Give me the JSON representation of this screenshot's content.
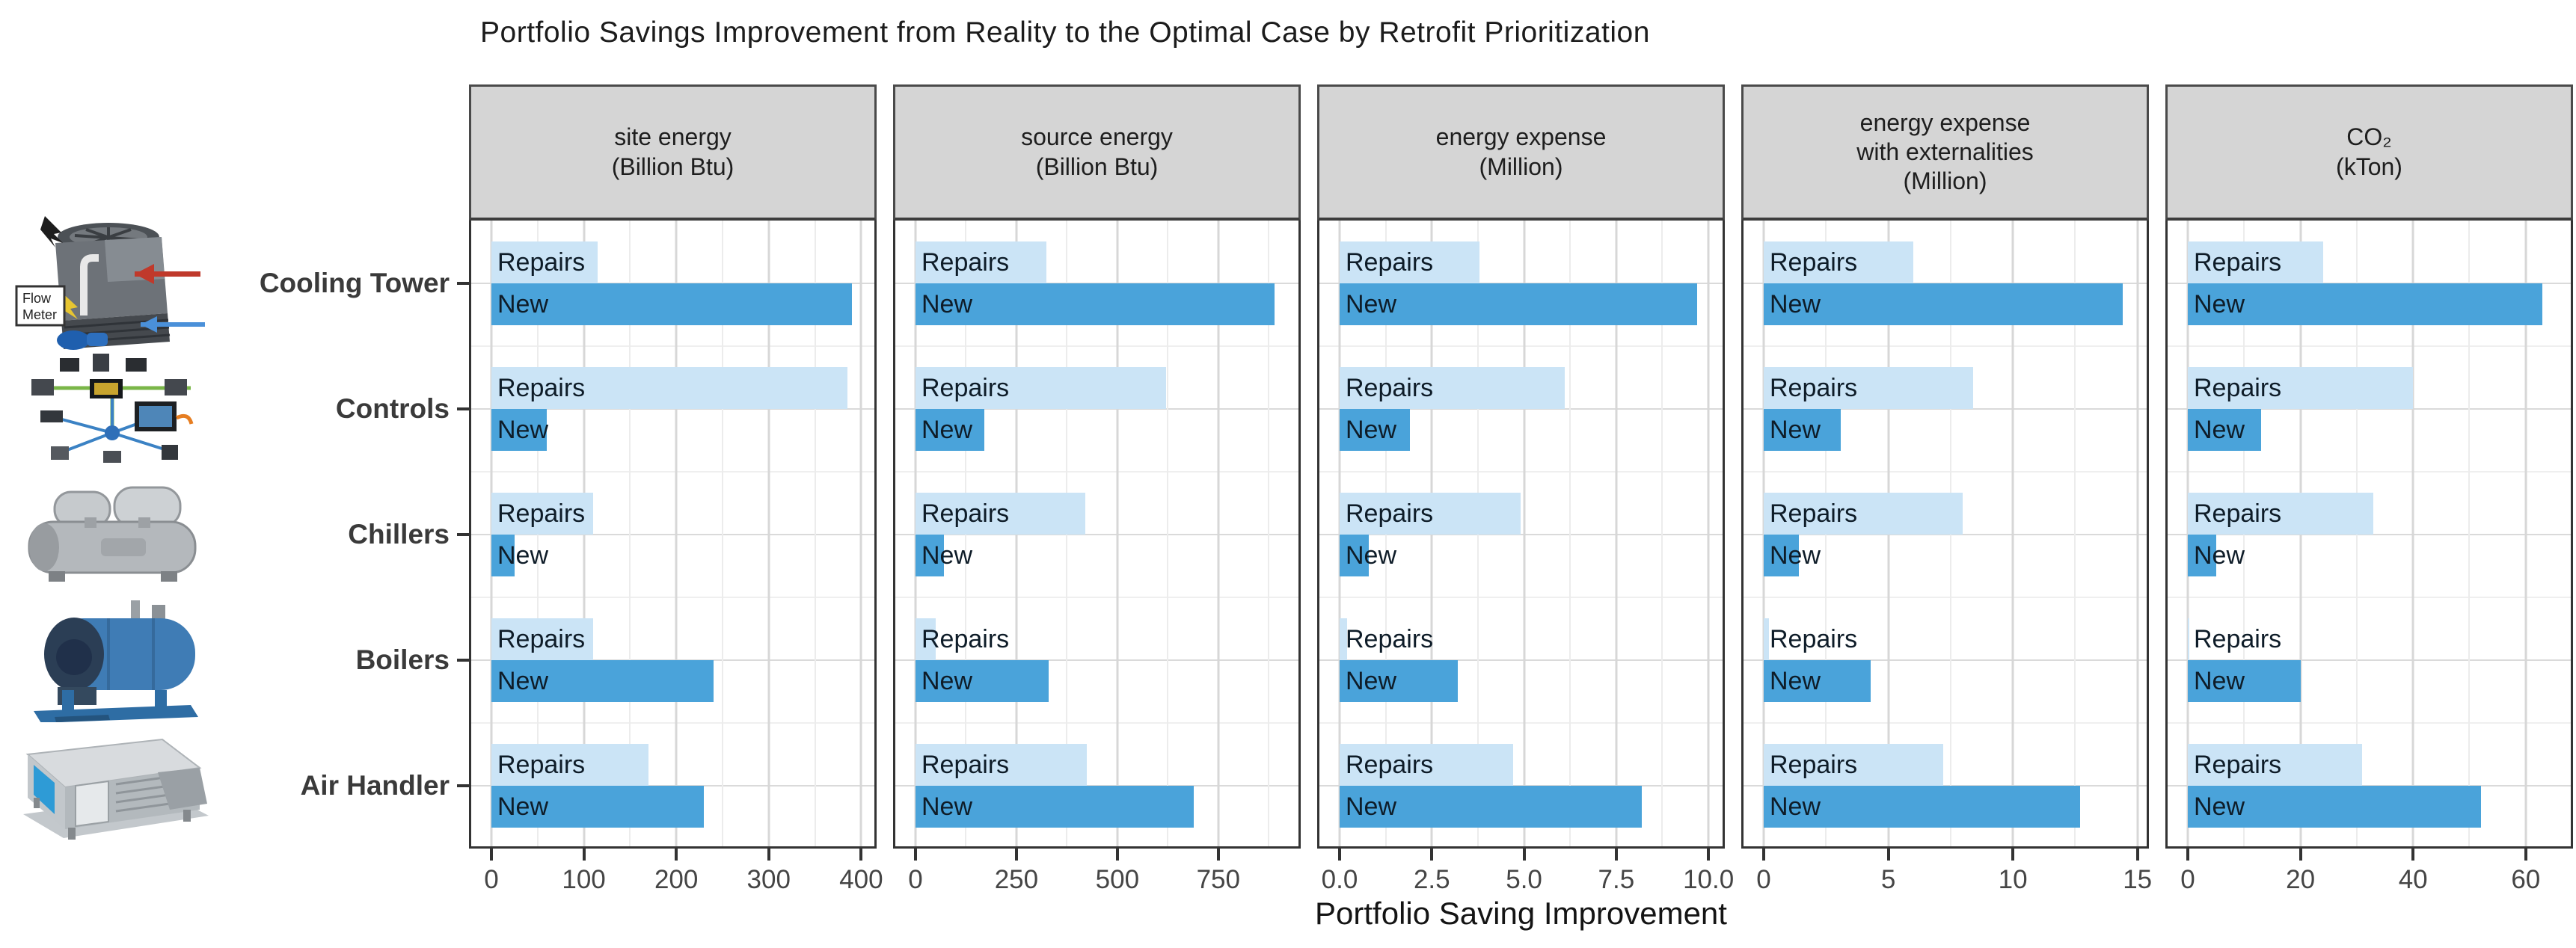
{
  "title": "Portfolio Savings Improvement from Reality to the Optimal Case by Retrofit Prioritization",
  "x_axis_title": "Portfolio Saving Improvement",
  "series_labels": [
    "Repairs",
    "New"
  ],
  "categories": [
    "Cooling Tower",
    "Controls",
    "Chillers",
    "Boilers",
    "Air Handler"
  ],
  "colors": {
    "repairs_bar": "#cbe4f6",
    "new_bar": "#4aa3da",
    "strip_bg": "#d5d5d5",
    "panel_border": "#333333",
    "bar_label_text": "#0e1c28",
    "boiler_blue": "#3f7cb5",
    "control_line_green": "#7ab648",
    "control_line_blue": "#3b82c4"
  },
  "images": {
    "flow_meter_line1": "Flow",
    "flow_meter_line2": "Meter"
  },
  "chart_data": {
    "type": "bar",
    "orientation": "horizontal",
    "grid": true,
    "legend": "none",
    "title": "Portfolio Savings Improvement from Reality to the Optimal Case by Retrofit Prioritization",
    "xlabel": "Portfolio Saving Improvement",
    "categories": [
      "Cooling Tower",
      "Controls",
      "Chillers",
      "Boilers",
      "Air Handler"
    ],
    "facets": [
      {
        "title_lines": [
          "site energy",
          "(Billion Btu)"
        ],
        "domain_max": 407,
        "ticks": [
          {
            "v": 0,
            "label": "0"
          },
          {
            "v": 100,
            "label": "100"
          },
          {
            "v": 200,
            "label": "200"
          },
          {
            "v": 300,
            "label": "300"
          },
          {
            "v": 400,
            "label": "400"
          }
        ],
        "minor_ticks": [
          50,
          150,
          250,
          350
        ],
        "series": [
          {
            "name": "Repairs",
            "values": [
              115,
              385,
              110,
              110,
              170
            ]
          },
          {
            "name": "New",
            "values": [
              390,
              60,
              25,
              240,
              230
            ]
          }
        ]
      },
      {
        "title_lines": [
          "source energy",
          "(Billion Btu)"
        ],
        "domain_max": 932,
        "ticks": [
          {
            "v": 0,
            "label": "0"
          },
          {
            "v": 250,
            "label": "250"
          },
          {
            "v": 500,
            "label": "500"
          },
          {
            "v": 750,
            "label": "750"
          }
        ],
        "minor_ticks": [
          125,
          375,
          625,
          875
        ],
        "series": [
          {
            "name": "Repairs",
            "values": [
              325,
              620,
              420,
              50,
              425
            ]
          },
          {
            "name": "New",
            "values": [
              890,
              170,
              70,
              330,
              690
            ]
          }
        ]
      },
      {
        "title_lines": [
          "energy expense",
          "(Million)"
        ],
        "domain_max": 10.2,
        "ticks": [
          {
            "v": 0,
            "label": "0.0"
          },
          {
            "v": 2.5,
            "label": "2.5"
          },
          {
            "v": 5,
            "label": "5.0"
          },
          {
            "v": 7.5,
            "label": "7.5"
          },
          {
            "v": 10,
            "label": "10.0"
          }
        ],
        "minor_ticks": [
          1.25,
          3.75,
          6.25,
          8.75
        ],
        "series": [
          {
            "name": "Repairs",
            "values": [
              3.8,
              6.1,
              4.9,
              0.2,
              4.7
            ]
          },
          {
            "name": "New",
            "values": [
              9.7,
              1.9,
              0.8,
              3.2,
              8.2
            ]
          }
        ]
      },
      {
        "title_lines": [
          "energy expense",
          "with externalities",
          "(Million)"
        ],
        "domain_max": 15.1,
        "ticks": [
          {
            "v": 0,
            "label": "0"
          },
          {
            "v": 5,
            "label": "5"
          },
          {
            "v": 10,
            "label": "10"
          },
          {
            "v": 15,
            "label": "15"
          }
        ],
        "minor_ticks": [
          2.5,
          7.5,
          12.5
        ],
        "series": [
          {
            "name": "Repairs",
            "values": [
              6.0,
              8.4,
              8.0,
              0.2,
              7.2
            ]
          },
          {
            "name": "New",
            "values": [
              14.4,
              3.1,
              1.4,
              4.3,
              12.7
            ]
          }
        ]
      },
      {
        "title_lines": [
          "CO₂",
          "(kTon)"
        ],
        "domain_max": 66.8,
        "ticks": [
          {
            "v": 0,
            "label": "0"
          },
          {
            "v": 20,
            "label": "20"
          },
          {
            "v": 40,
            "label": "40"
          },
          {
            "v": 60,
            "label": "60"
          }
        ],
        "minor_ticks": [
          10,
          30,
          50
        ],
        "series": [
          {
            "name": "Repairs",
            "values": [
              24,
              40,
              33,
              0.3,
              31
            ]
          },
          {
            "name": "New",
            "values": [
              63,
              13,
              5,
              20,
              52
            ]
          }
        ]
      }
    ]
  }
}
